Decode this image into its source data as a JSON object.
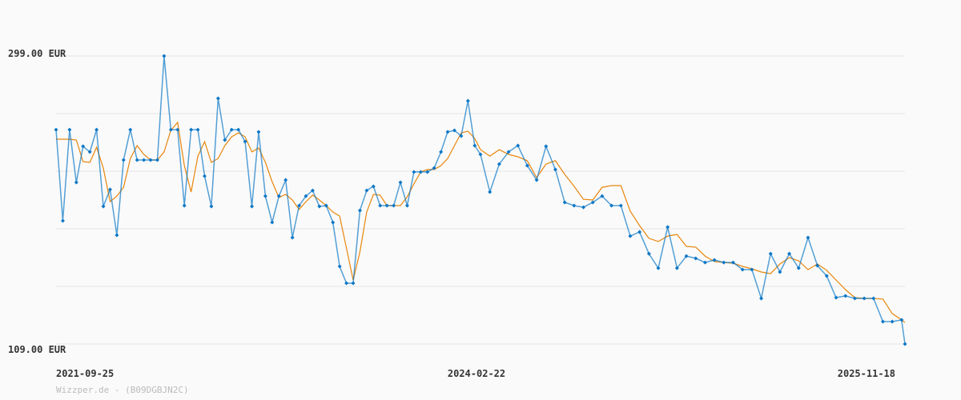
{
  "chart_data": {
    "type": "line",
    "currency": "EUR",
    "ylim": [
      109,
      299
    ],
    "y_tick_labels": [
      "299.00 EUR",
      "109.00 EUR"
    ],
    "y_grid_values": [
      299,
      261,
      223,
      185,
      147,
      109
    ],
    "x_tick_labels": [
      "2021-09-25",
      "2024-02-22",
      "2025-11-18"
    ],
    "grid": true,
    "colors": {
      "price": "#0b77c6",
      "average": "#e8860c",
      "grid": "#e4e4e4"
    },
    "x": [
      "2021-09-25",
      "2021-10-09",
      "2021-10-23",
      "2021-11-06",
      "2021-11-20",
      "2021-12-04",
      "2021-12-18",
      "2022-01-01",
      "2022-01-15",
      "2022-01-29",
      "2022-02-12",
      "2022-02-26",
      "2022-03-12",
      "2022-03-26",
      "2022-04-09",
      "2022-04-23",
      "2022-05-07",
      "2022-05-21",
      "2022-06-04",
      "2022-06-18",
      "2022-07-02",
      "2022-07-16",
      "2022-07-30",
      "2022-08-13",
      "2022-08-27",
      "2022-09-10",
      "2022-09-24",
      "2022-10-08",
      "2022-10-22",
      "2022-11-05",
      "2022-11-19",
      "2022-12-03",
      "2022-12-17",
      "2022-12-31",
      "2023-01-14",
      "2023-01-28",
      "2023-02-11",
      "2023-02-25",
      "2023-03-11",
      "2023-03-25",
      "2023-04-08",
      "2023-04-22",
      "2023-05-06",
      "2023-05-20",
      "2023-06-03",
      "2023-06-17",
      "2023-07-01",
      "2023-07-15",
      "2023-07-29",
      "2023-08-12",
      "2023-08-26",
      "2023-09-09",
      "2023-09-23",
      "2023-10-07",
      "2023-10-21",
      "2023-11-04",
      "2023-11-18",
      "2023-12-02",
      "2023-12-16",
      "2023-12-30",
      "2024-01-13",
      "2024-01-27",
      "2024-02-10",
      "2024-02-22",
      "2024-03-07",
      "2024-03-21",
      "2024-04-04",
      "2024-04-18",
      "2024-05-02",
      "2024-05-16",
      "2024-05-30",
      "2024-06-13",
      "2024-06-27",
      "2024-07-11",
      "2024-07-25",
      "2024-08-08",
      "2024-08-22",
      "2024-09-05",
      "2024-09-19",
      "2024-10-03",
      "2024-10-17",
      "2024-10-31",
      "2024-11-14",
      "2024-11-28",
      "2024-12-12",
      "2024-12-26",
      "2025-01-09",
      "2025-01-23",
      "2025-02-06",
      "2025-02-20",
      "2025-03-06",
      "2025-03-20",
      "2025-04-03",
      "2025-04-17",
      "2025-05-01",
      "2025-05-15",
      "2025-05-29",
      "2025-06-12",
      "2025-06-26",
      "2025-07-10",
      "2025-07-24",
      "2025-08-07",
      "2025-08-21",
      "2025-09-04",
      "2025-09-18",
      "2025-10-02",
      "2025-10-16",
      "2025-10-30",
      "2025-11-13",
      "2025-11-18"
    ],
    "series": [
      {
        "values": [
          250.4,
          190.3,
          250.4,
          215.6,
          239.4,
          235.7,
          250.4,
          199.8,
          210.9,
          180.8,
          230.4,
          250.4,
          230.4,
          230.4,
          230.4,
          230.4,
          299.0,
          250.4,
          250.4,
          200.3,
          250.4,
          250.4,
          219.8,
          199.8,
          271.0,
          243.6,
          250.4,
          250.4,
          242.5,
          199.8,
          248.9,
          206.6,
          189.2,
          206.6,
          217.2,
          179.2,
          200.3,
          206.6,
          210.3,
          199.8,
          200.3,
          189.2,
          160.2,
          149.1,
          149.1,
          197.1,
          210.3,
          213.0,
          200.3,
          200.3,
          200.3,
          215.6,
          200.3,
          222.5,
          222.5,
          222.5,
          225.1,
          235.7,
          248.9,
          249.9,
          246.2,
          269.4,
          239.9,
          234.1,
          209.3,
          227.7,
          235.7,
          239.9,
          226.7,
          217.2,
          239.4,
          224.1,
          202.4,
          200.3,
          199.2,
          202.4,
          206.6,
          200.3,
          200.3,
          180.2,
          182.9,
          168.6,
          159.1,
          186.1,
          159.1,
          167.0,
          165.5,
          162.8,
          164.4,
          162.8,
          162.8,
          158.1,
          158.1,
          139.1,
          168.6,
          156.5,
          168.6,
          159.1,
          179.2,
          160.7,
          153.9,
          139.6,
          140.7,
          139.1,
          139.1,
          139.1,
          123.8,
          123.8,
          124.9,
          109.0
        ]
      },
      {
        "values": [
          244.1,
          244.1,
          244.1,
          243.6,
          229.3,
          228.8,
          238.8,
          225.1,
          202.9,
          206.6,
          212.4,
          231.4,
          239.9,
          234.1,
          230.4,
          230.4,
          235.7,
          249.9,
          255.2,
          226.7,
          209.3,
          233.0,
          242.5,
          228.8,
          231.4,
          239.9,
          245.7,
          248.3,
          245.7,
          235.7,
          238.3,
          228.8,
          216.1,
          205.6,
          207.7,
          204.0,
          197.7,
          202.9,
          207.2,
          204.0,
          200.3,
          196.1,
          193.4,
          172.3,
          151.2,
          169.7,
          196.1,
          207.7,
          207.2,
          200.3,
          200.3,
          200.3,
          206.1,
          214.6,
          222.5,
          224.1,
          224.1,
          226.7,
          231.4,
          239.9,
          248.3,
          249.4,
          244.6,
          237.2,
          233.0,
          237.2,
          234.1,
          232.5,
          229.9,
          218.8,
          227.7,
          229.9,
          220.9,
          213.0,
          204.5,
          204.0,
          212.4,
          213.5,
          213.5,
          196.6,
          187.1,
          178.7,
          176.6,
          180.2,
          181.3,
          173.4,
          172.9,
          167.0,
          163.4,
          162.8,
          162.3,
          160.2,
          158.6,
          156.5,
          155.4,
          161.8,
          166.0,
          163.9,
          158.1,
          161.8,
          157.6,
          151.2,
          144.9,
          139.6,
          139.1,
          139.1,
          138.6,
          129.1,
          124.9,
          123.2
        ]
      }
    ]
  },
  "footer": {
    "credit": "Wizzper.de - (B09DGBJN2C)"
  }
}
